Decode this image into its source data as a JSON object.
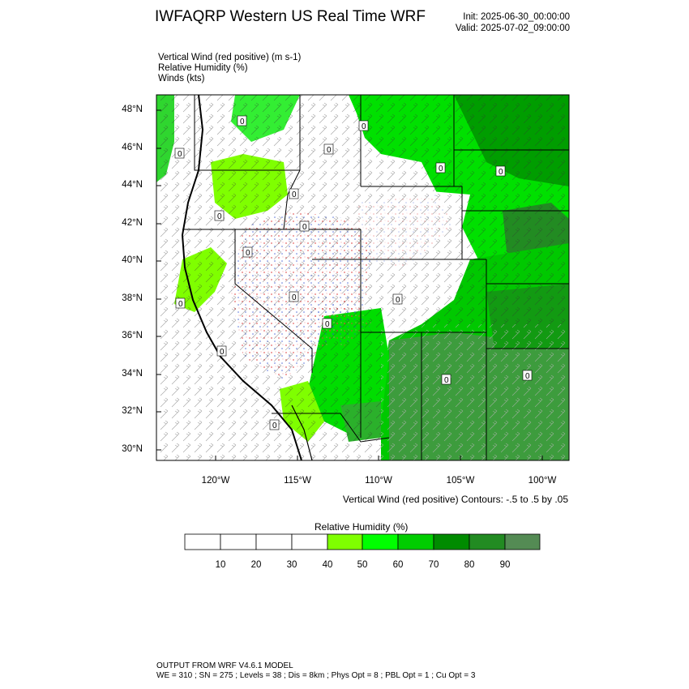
{
  "header": {
    "title": "IWFAQRP Western US Real Time WRF",
    "init": "Init: 2025-06-30_00:00:00",
    "valid": "Valid: 2025-07-02_09:00:00"
  },
  "fields": {
    "line1": "Vertical Wind (red positive)   (m s-1)",
    "line2": "Relative Humidity   (%)",
    "line3": "Winds   (kts)"
  },
  "axes": {
    "lat_labels": [
      "48°N",
      "46°N",
      "44°N",
      "42°N",
      "40°N",
      "38°N",
      "36°N",
      "34°N",
      "32°N",
      "30°N"
    ],
    "lon_labels": [
      "120°W",
      "115°W",
      "110°W",
      "105°W",
      "100°W"
    ]
  },
  "contour_note": "Vertical Wind (red positive) Contours: -.5 to .5 by .05",
  "colorbar": {
    "title": "Relative Humidity   (%)",
    "ticks": [
      "10",
      "20",
      "30",
      "40",
      "50",
      "60",
      "70",
      "80",
      "90"
    ],
    "colors": [
      "#ffffff",
      "#ffffff",
      "#ffffff",
      "#ffffff",
      "#7fff00",
      "#00ff00",
      "#00cd00",
      "#008b00",
      "#228b22",
      "#548b54"
    ]
  },
  "contour_zero_label": "0",
  "footer": {
    "line1": "OUTPUT FROM WRF V4.6.1 MODEL",
    "line2": "WE = 310 ; SN = 275 ; Levels = 38 ; Dis = 8km ; Phys Opt = 8 ; PBL Opt = 1 ; Cu Opt = 3"
  }
}
